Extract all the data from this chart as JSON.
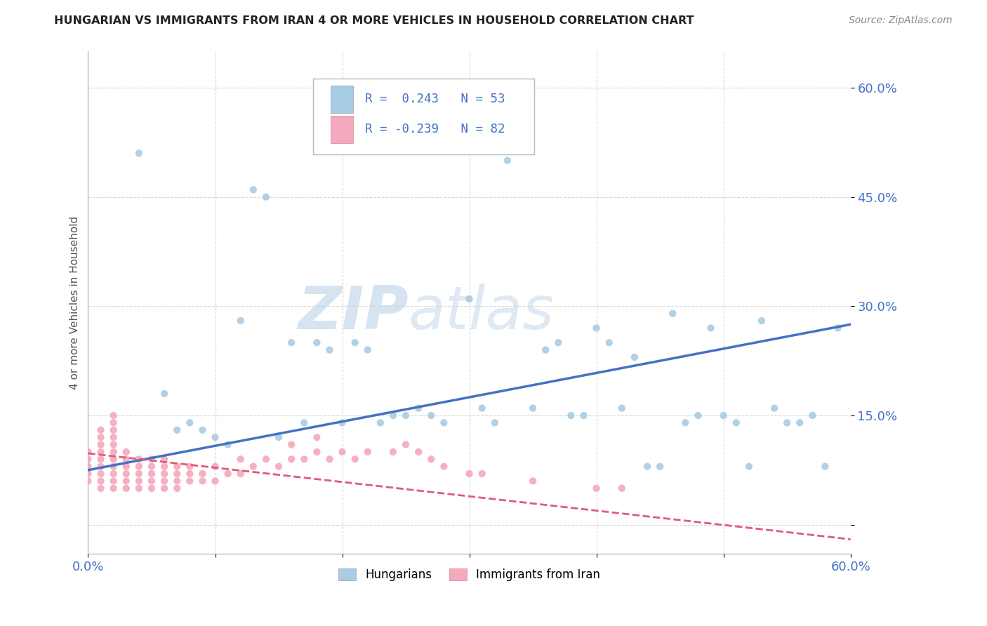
{
  "title": "HUNGARIAN VS IMMIGRANTS FROM IRAN 4 OR MORE VEHICLES IN HOUSEHOLD CORRELATION CHART",
  "source": "Source: ZipAtlas.com",
  "ylabel": "4 or more Vehicles in Household",
  "legend_label1": "Hungarians",
  "legend_label2": "Immigrants from Iran",
  "R1": 0.243,
  "N1": 53,
  "R2": -0.239,
  "N2": 82,
  "xlim": [
    0.0,
    0.6
  ],
  "ylim": [
    -0.04,
    0.65
  ],
  "xticks": [
    0.0,
    0.1,
    0.2,
    0.3,
    0.4,
    0.5,
    0.6
  ],
  "yticks": [
    0.0,
    0.15,
    0.3,
    0.45,
    0.6
  ],
  "color_blue": "#a8cce4",
  "color_pink": "#f4a9bc",
  "line_color_blue": "#4472c4",
  "line_color_pink": "#e05a7a",
  "background_color": "#ffffff",
  "grid_color": "#cccccc",
  "watermark_zip": "ZIP",
  "watermark_atlas": "atlas",
  "blue_dots_x": [
    0.04,
    0.06,
    0.07,
    0.08,
    0.09,
    0.1,
    0.11,
    0.12,
    0.13,
    0.14,
    0.15,
    0.16,
    0.17,
    0.18,
    0.19,
    0.2,
    0.21,
    0.22,
    0.23,
    0.24,
    0.25,
    0.26,
    0.27,
    0.28,
    0.3,
    0.31,
    0.32,
    0.33,
    0.35,
    0.36,
    0.37,
    0.38,
    0.39,
    0.4,
    0.41,
    0.42,
    0.43,
    0.44,
    0.45,
    0.46,
    0.47,
    0.48,
    0.49,
    0.5,
    0.51,
    0.52,
    0.53,
    0.54,
    0.55,
    0.56,
    0.57,
    0.58,
    0.59
  ],
  "blue_dots_y": [
    0.51,
    0.18,
    0.13,
    0.14,
    0.13,
    0.12,
    0.11,
    0.28,
    0.46,
    0.45,
    0.12,
    0.25,
    0.14,
    0.25,
    0.24,
    0.14,
    0.25,
    0.24,
    0.14,
    0.15,
    0.15,
    0.16,
    0.15,
    0.14,
    0.31,
    0.16,
    0.14,
    0.5,
    0.16,
    0.24,
    0.25,
    0.15,
    0.15,
    0.27,
    0.25,
    0.16,
    0.23,
    0.08,
    0.08,
    0.29,
    0.14,
    0.15,
    0.27,
    0.15,
    0.14,
    0.08,
    0.28,
    0.16,
    0.14,
    0.14,
    0.15,
    0.08,
    0.27
  ],
  "pink_dots_x": [
    0.0,
    0.0,
    0.0,
    0.0,
    0.0,
    0.01,
    0.01,
    0.01,
    0.01,
    0.01,
    0.01,
    0.01,
    0.01,
    0.01,
    0.02,
    0.02,
    0.02,
    0.02,
    0.02,
    0.02,
    0.02,
    0.02,
    0.02,
    0.02,
    0.02,
    0.03,
    0.03,
    0.03,
    0.03,
    0.03,
    0.03,
    0.04,
    0.04,
    0.04,
    0.04,
    0.04,
    0.05,
    0.05,
    0.05,
    0.05,
    0.05,
    0.06,
    0.06,
    0.06,
    0.06,
    0.06,
    0.07,
    0.07,
    0.07,
    0.07,
    0.08,
    0.08,
    0.08,
    0.09,
    0.09,
    0.1,
    0.1,
    0.11,
    0.12,
    0.12,
    0.13,
    0.14,
    0.15,
    0.16,
    0.16,
    0.17,
    0.18,
    0.18,
    0.19,
    0.2,
    0.21,
    0.22,
    0.24,
    0.25,
    0.26,
    0.27,
    0.28,
    0.3,
    0.31,
    0.35,
    0.4,
    0.42
  ],
  "pink_dots_y": [
    0.06,
    0.07,
    0.08,
    0.09,
    0.1,
    0.05,
    0.06,
    0.07,
    0.08,
    0.09,
    0.1,
    0.11,
    0.12,
    0.13,
    0.05,
    0.06,
    0.07,
    0.08,
    0.09,
    0.1,
    0.11,
    0.12,
    0.13,
    0.14,
    0.15,
    0.05,
    0.06,
    0.07,
    0.08,
    0.09,
    0.1,
    0.05,
    0.06,
    0.07,
    0.08,
    0.09,
    0.05,
    0.06,
    0.07,
    0.08,
    0.09,
    0.05,
    0.06,
    0.07,
    0.08,
    0.09,
    0.05,
    0.06,
    0.07,
    0.08,
    0.06,
    0.07,
    0.08,
    0.06,
    0.07,
    0.06,
    0.08,
    0.07,
    0.07,
    0.09,
    0.08,
    0.09,
    0.08,
    0.09,
    0.11,
    0.09,
    0.1,
    0.12,
    0.09,
    0.1,
    0.09,
    0.1,
    0.1,
    0.11,
    0.1,
    0.09,
    0.08,
    0.07,
    0.07,
    0.06,
    0.05,
    0.05
  ],
  "blue_line_x0": 0.0,
  "blue_line_y0": 0.075,
  "blue_line_x1": 0.6,
  "blue_line_y1": 0.275,
  "pink_line_x0": 0.0,
  "pink_line_y0": 0.098,
  "pink_line_x1": 0.6,
  "pink_line_y1": -0.02
}
